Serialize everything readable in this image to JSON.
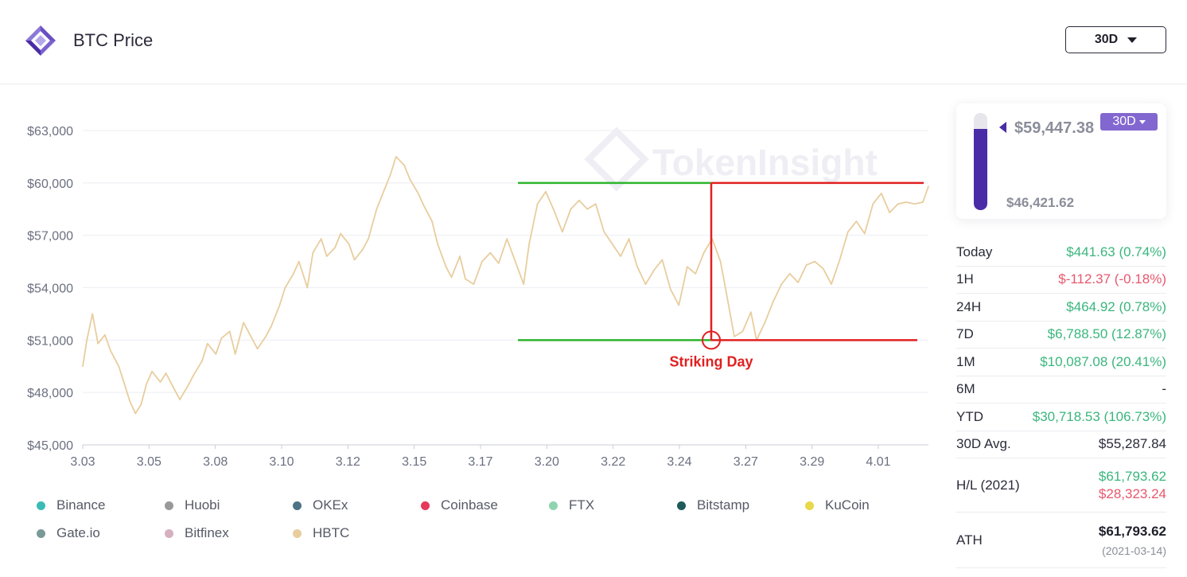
{
  "header": {
    "title": "BTC Price",
    "range_label": "30D"
  },
  "price_card": {
    "current_price": "$59,447.38",
    "low_price": "$46,421.62",
    "range_badge": "30D",
    "fill_fraction": 0.84
  },
  "stats": [
    {
      "label": "Today",
      "value": "$441.63 (0.74%)",
      "tone": "green"
    },
    {
      "label": "1H",
      "value": "$-112.37 (-0.18%)",
      "tone": "red"
    },
    {
      "label": "24H",
      "value": "$464.92 (0.78%)",
      "tone": "green"
    },
    {
      "label": "7D",
      "value": "$6,788.50 (12.87%)",
      "tone": "green"
    },
    {
      "label": "1M",
      "value": "$10,087.08 (20.41%)",
      "tone": "green"
    },
    {
      "label": "6M",
      "value": "-",
      "tone": "dark"
    },
    {
      "label": "YTD",
      "value": "$30,718.53 (106.73%)",
      "tone": "green"
    },
    {
      "label": "30D Avg.",
      "value": "$55,287.84",
      "tone": "dark"
    }
  ],
  "high_low": {
    "label": "H/L (2021)",
    "high": "$61,793.62",
    "low": "$28,323.24"
  },
  "ath": {
    "label": "ATH",
    "price": "$61,793.62",
    "date": "(2021-03-14)"
  },
  "legend": [
    {
      "name": "Binance",
      "color": "#3bbbb5"
    },
    {
      "name": "Huobi",
      "color": "#999999"
    },
    {
      "name": "OKEx",
      "color": "#4d7385"
    },
    {
      "name": "Coinbase",
      "color": "#e6395a"
    },
    {
      "name": "FTX",
      "color": "#8fd4b0"
    },
    {
      "name": "Bitstamp",
      "color": "#1f5a5a"
    },
    {
      "name": "KuCoin",
      "color": "#e8d84a"
    },
    {
      "name": "Gate.io",
      "color": "#7a9a98"
    },
    {
      "name": "Bitfinex",
      "color": "#d6b0bf"
    },
    {
      "name": "HBTC",
      "color": "#e8cd9e"
    }
  ],
  "chart_data": {
    "type": "line",
    "title": "",
    "xlabel": "",
    "ylabel": "",
    "x_tick_labels": [
      "3.03",
      "3.05",
      "3.08",
      "3.10",
      "3.12",
      "3.15",
      "3.17",
      "3.20",
      "3.22",
      "3.24",
      "3.27",
      "3.29",
      "4.01"
    ],
    "y_tick_labels": [
      "$45,000",
      "$48,000",
      "$51,000",
      "$54,000",
      "$57,000",
      "$60,000",
      "$63,000"
    ],
    "ylim": [
      45000,
      63000
    ],
    "y_ticks": [
      45000,
      48000,
      51000,
      54000,
      57000,
      60000,
      63000
    ],
    "grid": true,
    "line_color": "#e8cd9e",
    "watermark": "TokenInsight",
    "series": [
      {
        "name": "HBTC",
        "x_day_points": [
          0,
          0.15,
          0.35,
          0.55,
          0.8,
          1.0,
          1.3,
          1.5,
          1.7,
          1.9,
          2.1,
          2.3,
          2.5,
          2.8,
          3.0,
          3.3,
          3.5,
          3.8,
          4.0,
          4.3,
          4.5,
          4.8,
          5.0,
          5.3,
          5.5,
          5.8,
          6.1,
          6.3,
          6.6,
          6.8,
          7.1,
          7.3,
          7.6,
          7.8,
          8.1,
          8.3,
          8.6,
          8.8,
          9.1,
          9.3,
          9.6,
          9.8,
          10.1,
          10.3,
          10.6,
          10.8,
          11.1,
          11.3,
          11.6,
          11.8,
          12.1,
          12.3,
          12.6,
          12.8,
          13.1,
          13.3,
          13.6,
          13.8,
          14.1,
          14.4,
          14.7,
          15.0,
          15.3,
          15.6,
          15.9,
          16.1,
          16.4,
          16.7,
          17.0,
          17.3,
          17.6,
          17.9,
          18.2,
          18.5,
          18.8,
          19.1,
          19.4,
          19.7,
          20.0,
          20.3,
          20.6,
          20.9,
          21.2,
          21.5,
          21.8,
          22.1,
          22.4,
          22.7,
          23.0,
          23.2,
          23.5,
          23.8,
          24.1,
          24.3,
          24.6,
          24.9,
          25.2,
          25.5,
          25.8,
          26.1,
          26.4,
          26.7,
          27.0,
          27.3,
          27.6,
          27.9,
          28.2,
          28.5,
          28.8,
          29.1,
          29.4,
          29.7,
          30.0,
          30.3,
          30.5
        ],
        "values": [
          49500,
          51000,
          52500,
          50800,
          51300,
          50400,
          49500,
          48500,
          47500,
          46800,
          47300,
          48500,
          49200,
          48600,
          49100,
          48200,
          47600,
          48400,
          49000,
          49800,
          50800,
          50200,
          51100,
          51500,
          50200,
          52000,
          51100,
          50500,
          51200,
          51800,
          53000,
          54000,
          54800,
          55500,
          54000,
          56000,
          56800,
          55800,
          56300,
          57100,
          56500,
          55600,
          56200,
          56800,
          58500,
          59300,
          60500,
          61500,
          61000,
          60200,
          59400,
          58700,
          57800,
          56500,
          55200,
          54600,
          55800,
          54500,
          54200,
          55500,
          56000,
          55400,
          56800,
          55500,
          54200,
          56500,
          58800,
          59500,
          58400,
          57200,
          58500,
          59000,
          58500,
          58800,
          57200,
          56500,
          55800,
          56800,
          55200,
          54200,
          55000,
          55600,
          53900,
          53000,
          55200,
          54800,
          56000,
          56800,
          55500,
          53800,
          51200,
          51500,
          52600,
          51000,
          52000,
          53200,
          54200,
          54800,
          54300,
          55300,
          55500,
          55100,
          54200,
          55600,
          57200,
          57800,
          57100,
          58800,
          59400,
          58300,
          58800,
          58900,
          58800,
          58900,
          59800
        ]
      }
    ],
    "annotation": {
      "label": "Striking Day",
      "marker_x_label": "3.24",
      "low_level": 51000,
      "high_level": 60000,
      "pre_color": "#2db52d",
      "post_color": "#e02020"
    }
  }
}
